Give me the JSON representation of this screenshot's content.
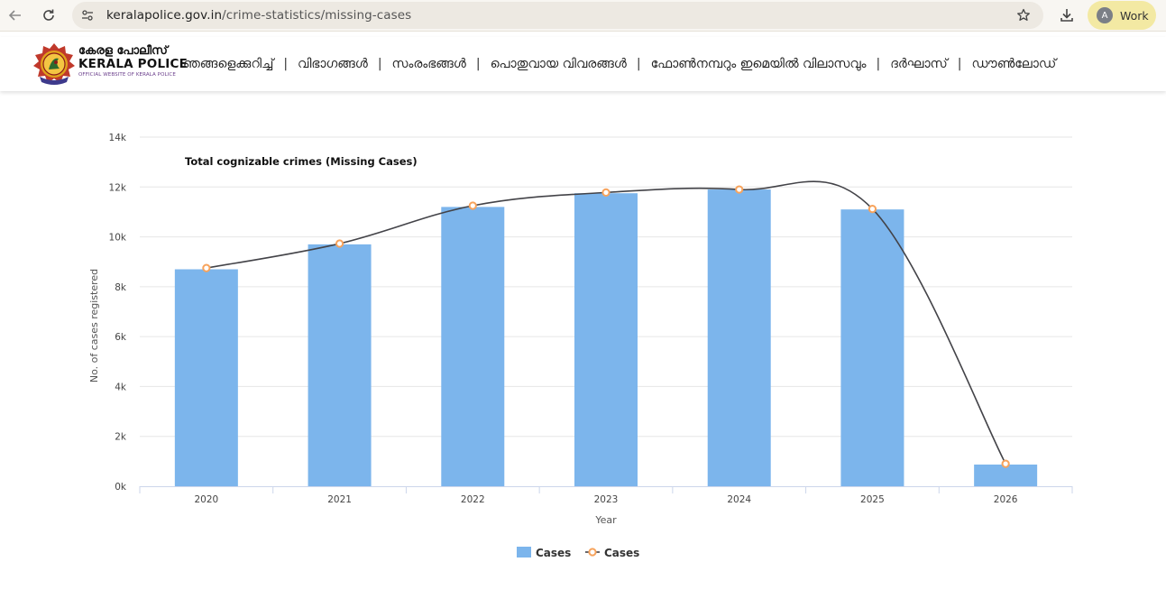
{
  "browser": {
    "url_domain": "keralapolice.gov.in",
    "url_path": "/crime-statistics/missing-cases",
    "profile_initial": "A",
    "profile_label": "Work",
    "icons": [
      "back-arrow-icon",
      "reload-icon",
      "site-info-icon",
      "bookmark-star-icon",
      "download-icon"
    ]
  },
  "site": {
    "brand_ml": "കേരള പോലീസ്",
    "brand_en": "KERALA POLICE",
    "brand_tagline": "OFFICIAL WEBSITE OF KERALA POLICE",
    "nav": [
      "ഞങ്ങളെക്കുറിച്ച്",
      "വിഭാഗങ്ങൾ",
      "സംരംഭങ്ങൾ",
      "പൊതുവായ വിവരങ്ങൾ",
      "ഫോൺനമ്പറും ഇമെയിൽ വിലാസവും",
      "ദർഘാസ്",
      "ഡൗൺലോഡ്"
    ]
  },
  "chart_data": {
    "type": "bar",
    "title": "Total cognizable crimes (Missing Cases)",
    "xlabel": "Year",
    "ylabel": "No. of cases registered",
    "categories": [
      "2020",
      "2021",
      "2022",
      "2023",
      "2024",
      "2025",
      "2026"
    ],
    "series": [
      {
        "name": "Cases",
        "kind": "bar",
        "color": "#7cb5ec",
        "values": [
          8700,
          9700,
          11200,
          11750,
          11900,
          11100,
          870
        ]
      },
      {
        "name": "Cases",
        "kind": "spline",
        "color": "#434348",
        "marker_color": "#f7a35c",
        "values": [
          8750,
          9730,
          11250,
          11780,
          11900,
          11120,
          900
        ]
      }
    ],
    "ylim": [
      0,
      14000
    ],
    "y_ticks": [
      "0k",
      "2k",
      "4k",
      "6k",
      "8k",
      "10k",
      "12k",
      "14k"
    ],
    "grid": true,
    "legend": "bottom-center"
  }
}
